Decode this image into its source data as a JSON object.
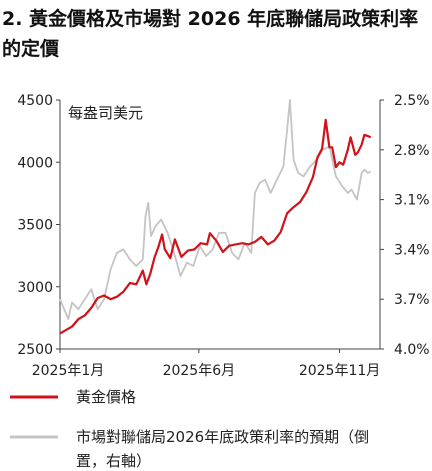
{
  "title": "2. 黃金價格及市場對 2026 年底聯儲局政策利率的定價",
  "chart_data": {
    "type": "line",
    "unit_label": "每盎司美元",
    "x_tick_labels": [
      "2025年1月",
      "2025年6月",
      "2025年11月"
    ],
    "x_range": [
      "2025-01-01",
      "2025-12-15"
    ],
    "y_left": {
      "ticks": [
        2500,
        3000,
        3500,
        4000,
        4500
      ],
      "range": [
        2500,
        4500
      ]
    },
    "y_right": {
      "ticks": [
        "2.5%",
        "2.8%",
        "3.1%",
        "3.4%",
        "3.7%",
        "4.0%"
      ],
      "range": [
        4.0,
        2.5
      ],
      "inverted": true
    },
    "grid": false,
    "legend_position": "bottom",
    "series": [
      {
        "name": "黃金價格",
        "axis": "left",
        "color": "#d0121b",
        "points": [
          [
            "2025-01-01",
            2625
          ],
          [
            "2025-01-07",
            2650
          ],
          [
            "2025-01-14",
            2680
          ],
          [
            "2025-01-21",
            2740
          ],
          [
            "2025-01-28",
            2770
          ],
          [
            "2025-02-04",
            2830
          ],
          [
            "2025-02-11",
            2910
          ],
          [
            "2025-02-18",
            2930
          ],
          [
            "2025-02-25",
            2900
          ],
          [
            "2025-03-04",
            2920
          ],
          [
            "2025-03-11",
            2960
          ],
          [
            "2025-03-18",
            3030
          ],
          [
            "2025-03-25",
            3020
          ],
          [
            "2025-04-01",
            3130
          ],
          [
            "2025-04-05",
            3020
          ],
          [
            "2025-04-09",
            3100
          ],
          [
            "2025-04-14",
            3240
          ],
          [
            "2025-04-18",
            3320
          ],
          [
            "2025-04-22",
            3420
          ],
          [
            "2025-04-25",
            3300
          ],
          [
            "2025-05-01",
            3230
          ],
          [
            "2025-05-06",
            3380
          ],
          [
            "2025-05-13",
            3240
          ],
          [
            "2025-05-20",
            3290
          ],
          [
            "2025-05-27",
            3300
          ],
          [
            "2025-06-03",
            3350
          ],
          [
            "2025-06-10",
            3340
          ],
          [
            "2025-06-13",
            3430
          ],
          [
            "2025-06-20",
            3370
          ],
          [
            "2025-06-27",
            3280
          ],
          [
            "2025-07-04",
            3330
          ],
          [
            "2025-07-11",
            3340
          ],
          [
            "2025-07-18",
            3350
          ],
          [
            "2025-07-25",
            3340
          ],
          [
            "2025-08-01",
            3360
          ],
          [
            "2025-08-08",
            3400
          ],
          [
            "2025-08-15",
            3340
          ],
          [
            "2025-08-22",
            3370
          ],
          [
            "2025-08-29",
            3440
          ],
          [
            "2025-09-05",
            3590
          ],
          [
            "2025-09-12",
            3640
          ],
          [
            "2025-09-19",
            3680
          ],
          [
            "2025-09-26",
            3760
          ],
          [
            "2025-10-03",
            3880
          ],
          [
            "2025-10-08",
            4040
          ],
          [
            "2025-10-13",
            4110
          ],
          [
            "2025-10-17",
            4340
          ],
          [
            "2025-10-21",
            4120
          ],
          [
            "2025-10-24",
            4120
          ],
          [
            "2025-10-28",
            3960
          ],
          [
            "2025-11-01",
            4000
          ],
          [
            "2025-11-05",
            3980
          ],
          [
            "2025-11-10",
            4100
          ],
          [
            "2025-11-13",
            4200
          ],
          [
            "2025-11-18",
            4060
          ],
          [
            "2025-11-21",
            4080
          ],
          [
            "2025-11-25",
            4140
          ],
          [
            "2025-11-28",
            4220
          ],
          [
            "2025-12-02",
            4210
          ],
          [
            "2025-12-05",
            4200
          ]
        ]
      },
      {
        "name": "市場對聯儲局2026年底政策利率的預期（倒置，右軸）",
        "axis": "right",
        "color": "#c4c4c4",
        "points": [
          [
            "2025-01-01",
            3.7
          ],
          [
            "2025-01-07",
            3.78
          ],
          [
            "2025-01-10",
            3.82
          ],
          [
            "2025-01-14",
            3.72
          ],
          [
            "2025-01-21",
            3.76
          ],
          [
            "2025-01-28",
            3.7
          ],
          [
            "2025-02-04",
            3.64
          ],
          [
            "2025-02-11",
            3.76
          ],
          [
            "2025-02-18",
            3.7
          ],
          [
            "2025-02-25",
            3.52
          ],
          [
            "2025-03-04",
            3.42
          ],
          [
            "2025-03-11",
            3.4
          ],
          [
            "2025-03-18",
            3.46
          ],
          [
            "2025-03-25",
            3.5
          ],
          [
            "2025-04-01",
            3.46
          ],
          [
            "2025-04-04",
            3.2
          ],
          [
            "2025-04-07",
            3.12
          ],
          [
            "2025-04-10",
            3.32
          ],
          [
            "2025-04-15",
            3.26
          ],
          [
            "2025-04-21",
            3.22
          ],
          [
            "2025-04-28",
            3.3
          ],
          [
            "2025-05-05",
            3.42
          ],
          [
            "2025-05-12",
            3.56
          ],
          [
            "2025-05-19",
            3.48
          ],
          [
            "2025-05-26",
            3.5
          ],
          [
            "2025-06-02",
            3.38
          ],
          [
            "2025-06-09",
            3.44
          ],
          [
            "2025-06-16",
            3.4
          ],
          [
            "2025-06-23",
            3.3
          ],
          [
            "2025-06-30",
            3.3
          ],
          [
            "2025-07-07",
            3.42
          ],
          [
            "2025-07-14",
            3.46
          ],
          [
            "2025-07-21",
            3.36
          ],
          [
            "2025-07-28",
            3.42
          ],
          [
            "2025-08-01",
            3.06
          ],
          [
            "2025-08-06",
            3.0
          ],
          [
            "2025-08-12",
            2.98
          ],
          [
            "2025-08-18",
            3.06
          ],
          [
            "2025-08-25",
            2.98
          ],
          [
            "2025-09-01",
            2.9
          ],
          [
            "2025-09-05",
            2.68
          ],
          [
            "2025-09-08",
            2.5
          ],
          [
            "2025-09-12",
            2.86
          ],
          [
            "2025-09-17",
            2.94
          ],
          [
            "2025-09-23",
            2.96
          ],
          [
            "2025-09-30",
            2.9
          ],
          [
            "2025-10-07",
            2.86
          ],
          [
            "2025-10-14",
            2.8
          ],
          [
            "2025-10-21",
            2.78
          ],
          [
            "2025-10-28",
            2.96
          ],
          [
            "2025-11-04",
            3.02
          ],
          [
            "2025-11-10",
            3.06
          ],
          [
            "2025-11-14",
            3.04
          ],
          [
            "2025-11-20",
            3.1
          ],
          [
            "2025-11-25",
            2.94
          ],
          [
            "2025-11-28",
            2.92
          ],
          [
            "2025-12-02",
            2.94
          ],
          [
            "2025-12-05",
            2.93
          ]
        ]
      }
    ]
  }
}
